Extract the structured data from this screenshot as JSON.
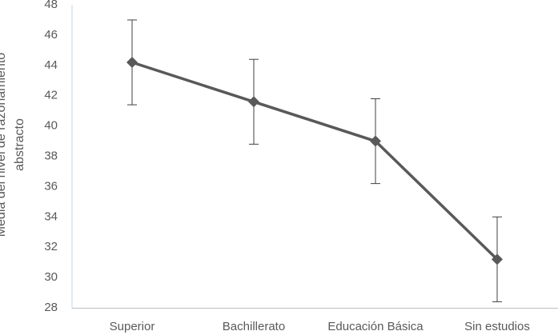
{
  "chart_data": {
    "type": "line",
    "y_label": "Media del nivel de razonamiento abstracto",
    "categories": [
      "Superior",
      "Bachillerato",
      "Educación Básica",
      "Sin estudios"
    ],
    "values": [
      44.2,
      41.6,
      39.0,
      31.2
    ],
    "errors": [
      2.8,
      2.8,
      2.8,
      2.8
    ],
    "color": "#595959",
    "ylim": [
      28,
      48
    ],
    "yticks": [
      28,
      30,
      32,
      34,
      36,
      38,
      40,
      42,
      44,
      46,
      48
    ],
    "grid": false
  }
}
